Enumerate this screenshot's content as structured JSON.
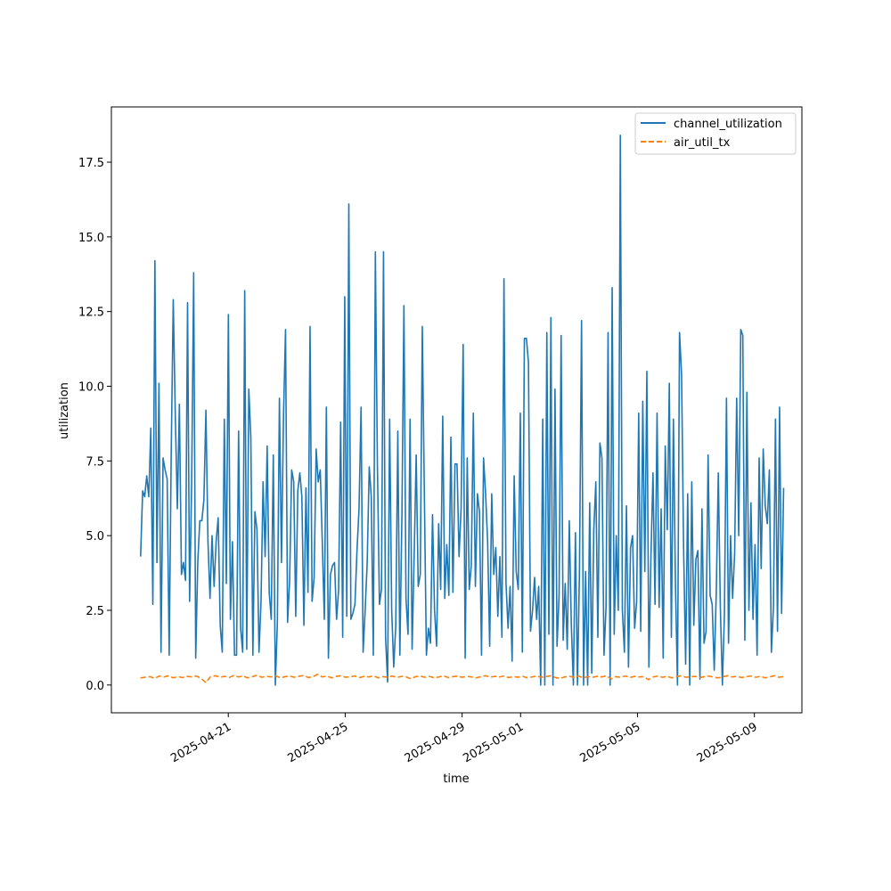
{
  "chart_data": {
    "type": "line",
    "title": "",
    "xlabel": "time",
    "ylabel": "utilization",
    "x_start": "2025-04-18",
    "x_end": "2025-05-10",
    "xlim": [
      "2025-04-17T00:00",
      "2025-05-10T15:00"
    ],
    "ylim": [
      -0.93,
      19.35
    ],
    "x_ticks": [
      "2025-04-21",
      "2025-04-25",
      "2025-04-29",
      "2025-05-01",
      "2025-05-05",
      "2025-05-09"
    ],
    "y_ticks": [
      0.0,
      2.5,
      5.0,
      7.5,
      10.0,
      12.5,
      15.0,
      17.5
    ],
    "y_tick_labels": [
      "0.0",
      "2.5",
      "5.0",
      "7.5",
      "10.0",
      "12.5",
      "15.0",
      "17.5"
    ],
    "legend_position": "top-right",
    "grid": false,
    "series": [
      {
        "name": "channel_utilization",
        "color": "#1f77b4",
        "style": "solid",
        "values": [
          4.3,
          6.5,
          6.3,
          7.0,
          6.3,
          8.6,
          2.7,
          14.2,
          4.1,
          10.1,
          1.1,
          7.6,
          7.2,
          6.9,
          1.0,
          7.8,
          12.9,
          9.0,
          5.9,
          9.4,
          3.7,
          4.1,
          3.5,
          12.8,
          2.8,
          6.7,
          13.8,
          0.9,
          4.1,
          5.5,
          5.5,
          6.2,
          9.2,
          4.8,
          2.9,
          5.0,
          3.3,
          4.8,
          5.6,
          2.0,
          1.1,
          8.9,
          3.4,
          12.4,
          2.2,
          4.8,
          1.0,
          1.0,
          8.5,
          1.9,
          1.1,
          13.2,
          1.2,
          9.9,
          8.3,
          1.0,
          5.8,
          5.2,
          1.1,
          2.8,
          6.8,
          4.3,
          8.0,
          3.1,
          2.2,
          7.7,
          0.0,
          2.1,
          9.6,
          4.1,
          9.0,
          11.9,
          2.1,
          3.5,
          7.2,
          6.8,
          2.3,
          6.5,
          7.1,
          6.3,
          2.0,
          6.6,
          3.1,
          12.0,
          2.8,
          3.6,
          7.9,
          6.8,
          7.2,
          4.8,
          2.2,
          9.3,
          0.9,
          3.7,
          4.0,
          4.1,
          2.2,
          3.2,
          8.8,
          1.6,
          13.0,
          2.3,
          16.1,
          2.2,
          2.4,
          2.7,
          4.5,
          5.9,
          9.3,
          1.1,
          2.5,
          4.1,
          7.3,
          6.3,
          1.0,
          14.5,
          7.4,
          2.7,
          3.2,
          14.5,
          1.6,
          0.1,
          8.9,
          2.5,
          0.6,
          2.0,
          8.5,
          1.0,
          5.6,
          12.7,
          2.9,
          1.7,
          8.9,
          1.2,
          4.3,
          7.7,
          3.3,
          3.7,
          12.0,
          6.4,
          1.0,
          1.9,
          1.4,
          5.7,
          2.5,
          1.3,
          5.4,
          3.2,
          9.0,
          2.9,
          4.7,
          3.0,
          8.3,
          3.1,
          7.4,
          7.4,
          4.3,
          5.9,
          11.4,
          0.9,
          7.6,
          3.2,
          4.0,
          9.1,
          3.3,
          6.4,
          5.8,
          1.0,
          7.6,
          6.4,
          4.8,
          1.3,
          6.4,
          3.7,
          4.6,
          2.3,
          4.3,
          1.6,
          13.6,
          3.4,
          1.9,
          3.3,
          0.8,
          7.0,
          3.8,
          3.2,
          9.1,
          1.1,
          11.6,
          11.6,
          10.8,
          1.8,
          2.5,
          3.6,
          2.2,
          3.3,
          0.0,
          8.9,
          0.0,
          11.8,
          1.7,
          12.3,
          0.0,
          9.9,
          1.3,
          3.0,
          11.7,
          1.5,
          3.4,
          1.2,
          5.5,
          2.0,
          0.0,
          5.1,
          0.0,
          3.9,
          12.2,
          0.0,
          3.8,
          0.0,
          6.1,
          0.4,
          5.2,
          6.8,
          1.6,
          8.1,
          7.6,
          1.0,
          2.6,
          11.8,
          0.0,
          13.3,
          1.7,
          5.0,
          2.5,
          18.4,
          2.5,
          1.1,
          6.0,
          0.6,
          4.6,
          5.0,
          1.9,
          2.8,
          9.1,
          1.8,
          9.5,
          3.8,
          10.5,
          0.6,
          4.3,
          7.1,
          2.7,
          9.1,
          2.6,
          5.9,
          0.9,
          8.0,
          5.2,
          10.1,
          1.6,
          8.9,
          3.4,
          0.0,
          11.8,
          10.4,
          4.6,
          0.7,
          6.4,
          0.0,
          6.8,
          2.0,
          4.2,
          4.5,
          0.2,
          5.9,
          1.4,
          1.8,
          7.7,
          3.0,
          2.7,
          0.5,
          3.1,
          7.1,
          2.6,
          0.0,
          2.4,
          9.6,
          1.4,
          5.0,
          2.9,
          4.4,
          9.6,
          5.0,
          11.9,
          11.7,
          1.5,
          9.8,
          2.5,
          6.1,
          2.2,
          4.7,
          1.0,
          7.6,
          3.9,
          7.9,
          6.0,
          5.4,
          7.2,
          1.1,
          2.6,
          8.9,
          1.8,
          9.3,
          2.4,
          6.6
        ]
      },
      {
        "name": "air_util_tx",
        "color": "#ff7f0e",
        "style": "dashed",
        "values": [
          0.24,
          0.26,
          0.28,
          0.22,
          0.3,
          0.27,
          0.31,
          0.24,
          0.28,
          0.25,
          0.29,
          0.27,
          0.3,
          0.22,
          0.08,
          0.28,
          0.31,
          0.26,
          0.29,
          0.25,
          0.32,
          0.27,
          0.3,
          0.24,
          0.28,
          0.33,
          0.26,
          0.29,
          0.27,
          0.31,
          0.24,
          0.28,
          0.3,
          0.26,
          0.29,
          0.32,
          0.25,
          0.28,
          0.36,
          0.27,
          0.3,
          0.24,
          0.29,
          0.31,
          0.26,
          0.28,
          0.3,
          0.25,
          0.29,
          0.27,
          0.31,
          0.24,
          0.28,
          0.26,
          0.3,
          0.25,
          0.29,
          0.27,
          0.21,
          0.28,
          0.3,
          0.26,
          0.29,
          0.24,
          0.27,
          0.31,
          0.25,
          0.28,
          0.3,
          0.26,
          0.29,
          0.27,
          0.24,
          0.28,
          0.31,
          0.26,
          0.29,
          0.27,
          0.3,
          0.25,
          0.28,
          0.26,
          0.29,
          0.24,
          0.27,
          0.3,
          0.26,
          0.28,
          0.31,
          0.25,
          0.22,
          0.27,
          0.29,
          0.26,
          0.3,
          0.24,
          0.28,
          0.26,
          0.29,
          0.27,
          0.31,
          0.2,
          0.28,
          0.26,
          0.3,
          0.25,
          0.29,
          0.27,
          0.28,
          0.18,
          0.27,
          0.3,
          0.26,
          0.29,
          0.24,
          0.28,
          0.31,
          0.26,
          0.27,
          0.29,
          0.25,
          0.28,
          0.3,
          0.26,
          0.24,
          0.28,
          0.31,
          0.27,
          0.29,
          0.25,
          0.28,
          0.3,
          0.26,
          0.29,
          0.24,
          0.27,
          0.31,
          0.26,
          0.28
        ]
      }
    ]
  }
}
